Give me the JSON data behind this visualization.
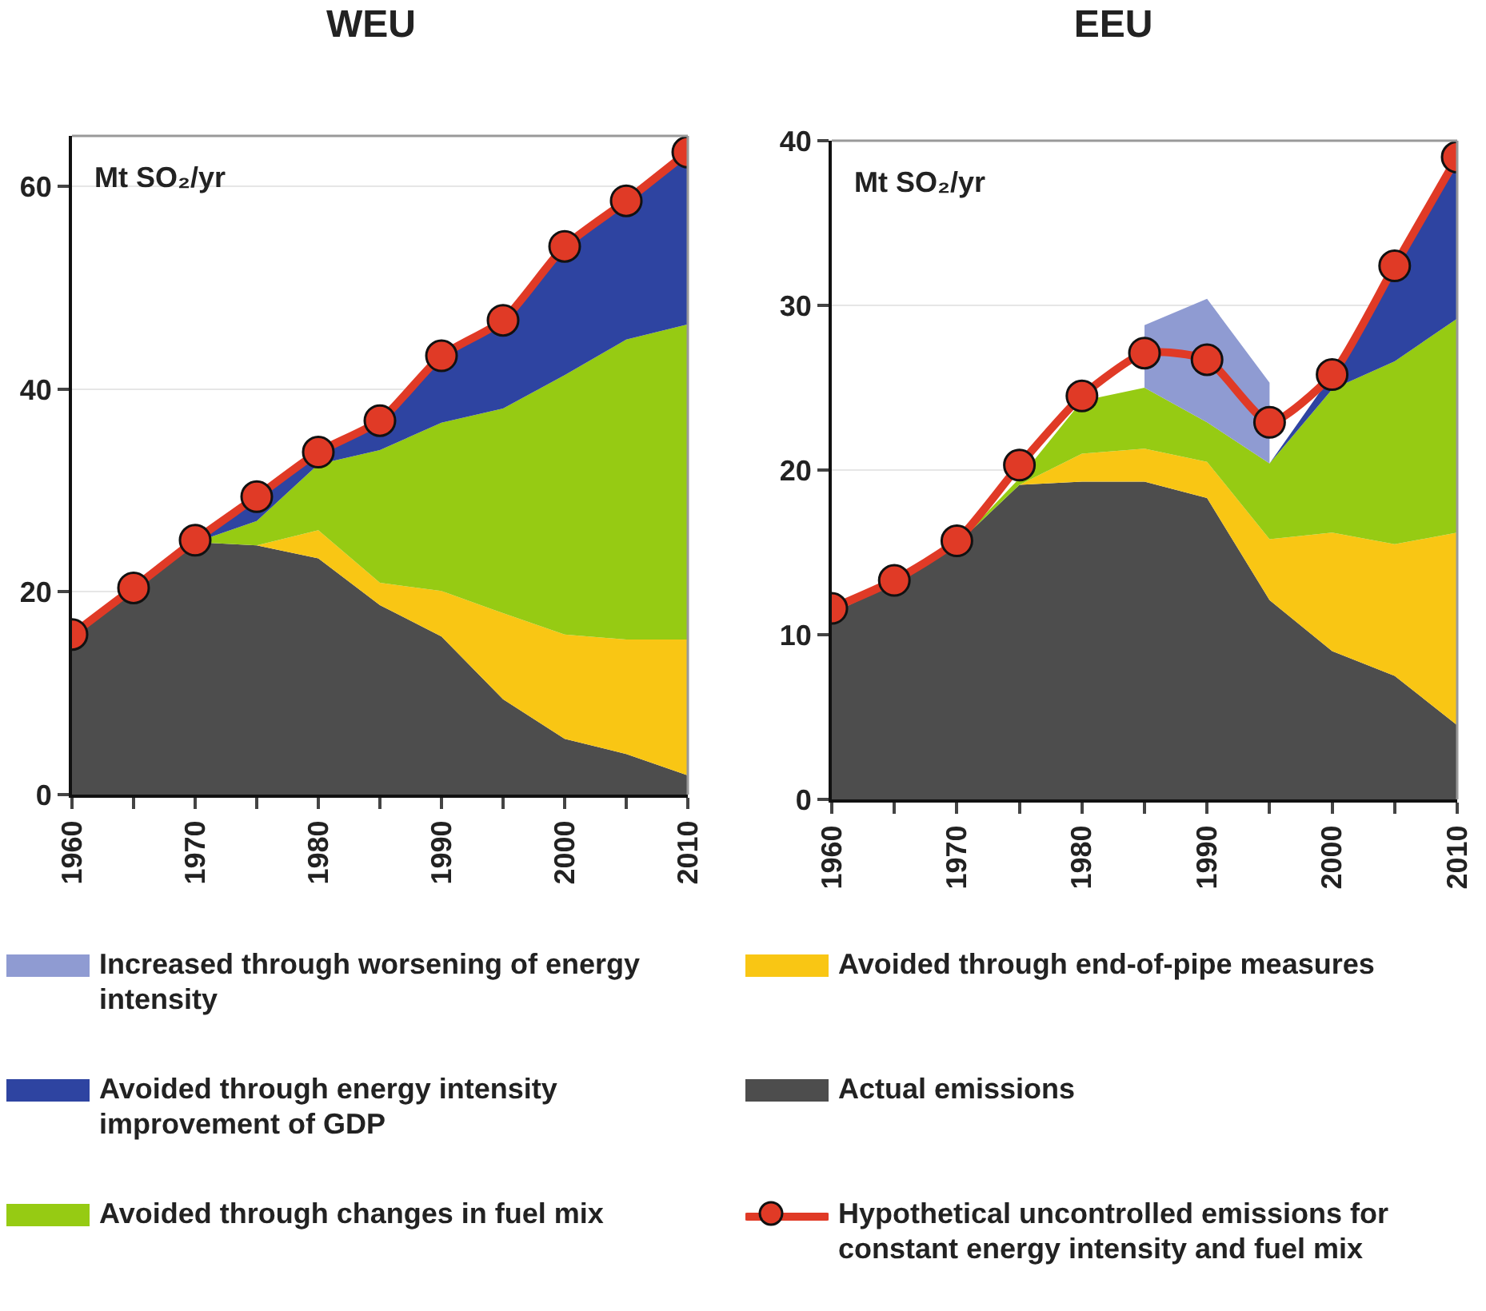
{
  "chart_data": [
    {
      "type": "area",
      "title": "WEU",
      "annotations": [
        "Mt SO₂/yr"
      ],
      "stacked": true,
      "x": [
        1960,
        1965,
        1970,
        1975,
        1980,
        1985,
        1990,
        1995,
        2000,
        2005,
        2010
      ],
      "xlim": [
        1960,
        2010
      ],
      "xticks": [
        1960,
        {
          "value": 1965,
          "label": null
        },
        1970,
        {
          "value": 1975,
          "label": null
        },
        1980,
        {
          "value": 1985,
          "label": null
        },
        1990,
        {
          "value": 1995,
          "label": null
        },
        2000,
        {
          "value": 2005,
          "label": null
        },
        2010
      ],
      "ylim": [
        0,
        65
      ],
      "yticks": [
        0,
        20,
        40,
        60
      ],
      "grid": "y",
      "legend": "bottom",
      "series": [
        {
          "name": "Actual emissions",
          "color": "#4d4d4d",
          "values": [
            15.5,
            20.3,
            24.9,
            24.6,
            23.3,
            18.7,
            15.6,
            9.4,
            5.5,
            4.0,
            1.9
          ]
        },
        {
          "name": "Avoided through end-of-pipe measures",
          "color": "#f9c614",
          "values": [
            0,
            0,
            0,
            0,
            2.8,
            2.2,
            4.5,
            8.5,
            10.3,
            11.3,
            13.4
          ]
        },
        {
          "name": "Avoided through changes in fuel mix",
          "color": "#96cb13",
          "values": [
            0,
            0,
            0,
            2.4,
            6.5,
            13.1,
            16.6,
            20.2,
            25.6,
            29.6,
            31.1
          ]
        },
        {
          "name": "Avoided through energy intensity improvement of GDP",
          "color": "#2e44a1",
          "values": [
            0.3,
            0.1,
            0.2,
            2.4,
            1.2,
            2.9,
            6.6,
            8.7,
            12.7,
            13.7,
            17.0
          ]
        },
        {
          "name": "Hypothetical uncontrolled emissions for constant energy intensity and fuel mix",
          "type": "line",
          "marker": "circle",
          "color": "#e03a26",
          "values": [
            15.8,
            20.4,
            25.1,
            29.4,
            33.8,
            36.9,
            43.3,
            46.8,
            54.1,
            58.6,
            63.4
          ]
        }
      ]
    },
    {
      "type": "area",
      "title": "EEU",
      "annotations": [
        "Mt SO₂/yr"
      ],
      "stacked": true,
      "x": [
        1960,
        1965,
        1970,
        1975,
        1980,
        1985,
        1990,
        1995,
        2000,
        2005,
        2010
      ],
      "xlim": [
        1960,
        2010
      ],
      "xticks": [
        1960,
        {
          "value": 1965,
          "label": null
        },
        1970,
        {
          "value": 1975,
          "label": null
        },
        1980,
        {
          "value": 1985,
          "label": null
        },
        1990,
        {
          "value": 1995,
          "label": null
        },
        2000,
        {
          "value": 2005,
          "label": null
        },
        2010
      ],
      "ylim": [
        0,
        40
      ],
      "yticks": [
        0,
        10,
        20,
        30,
        40
      ],
      "grid": "y",
      "legend": "bottom",
      "series": [
        {
          "name": "Actual emissions",
          "color": "#4d4d4d",
          "values": [
            11.3,
            13.1,
            15.5,
            19.1,
            19.3,
            19.3,
            18.3,
            12.1,
            9.0,
            7.5,
            4.5
          ]
        },
        {
          "name": "Avoided through end-of-pipe measures",
          "color": "#f9c614",
          "values": [
            0,
            0,
            0,
            0,
            1.7,
            2.0,
            2.2,
            3.7,
            7.2,
            8.0,
            11.7
          ]
        },
        {
          "name": "Avoided through changes in fuel mix",
          "color": "#96cb13",
          "values": [
            0,
            0,
            0,
            0.4,
            3.2,
            3.7,
            2.4,
            4.6,
            8.7,
            11.1,
            13.0
          ]
        },
        {
          "name": "Avoided through energy intensity improvement of GDP",
          "color": "#2e44a1",
          "values": [
            0,
            0,
            0,
            0,
            0,
            0,
            0,
            0,
            0.9,
            5.8,
            9.8
          ]
        },
        {
          "name": "Increased through worsening of energy intensity",
          "color": "#8f9bd2",
          "values": [
            null,
            null,
            null,
            null,
            null,
            3.8,
            7.5,
            4.9,
            null,
            null,
            null
          ]
        },
        {
          "name": "Hypothetical uncontrolled emissions for constant energy intensity and fuel mix",
          "type": "line",
          "marker": "circle",
          "color": "#e03a26",
          "values": [
            11.6,
            13.3,
            15.7,
            20.3,
            24.5,
            27.1,
            26.7,
            22.9,
            25.8,
            32.4,
            39.0
          ]
        }
      ]
    }
  ]
}
